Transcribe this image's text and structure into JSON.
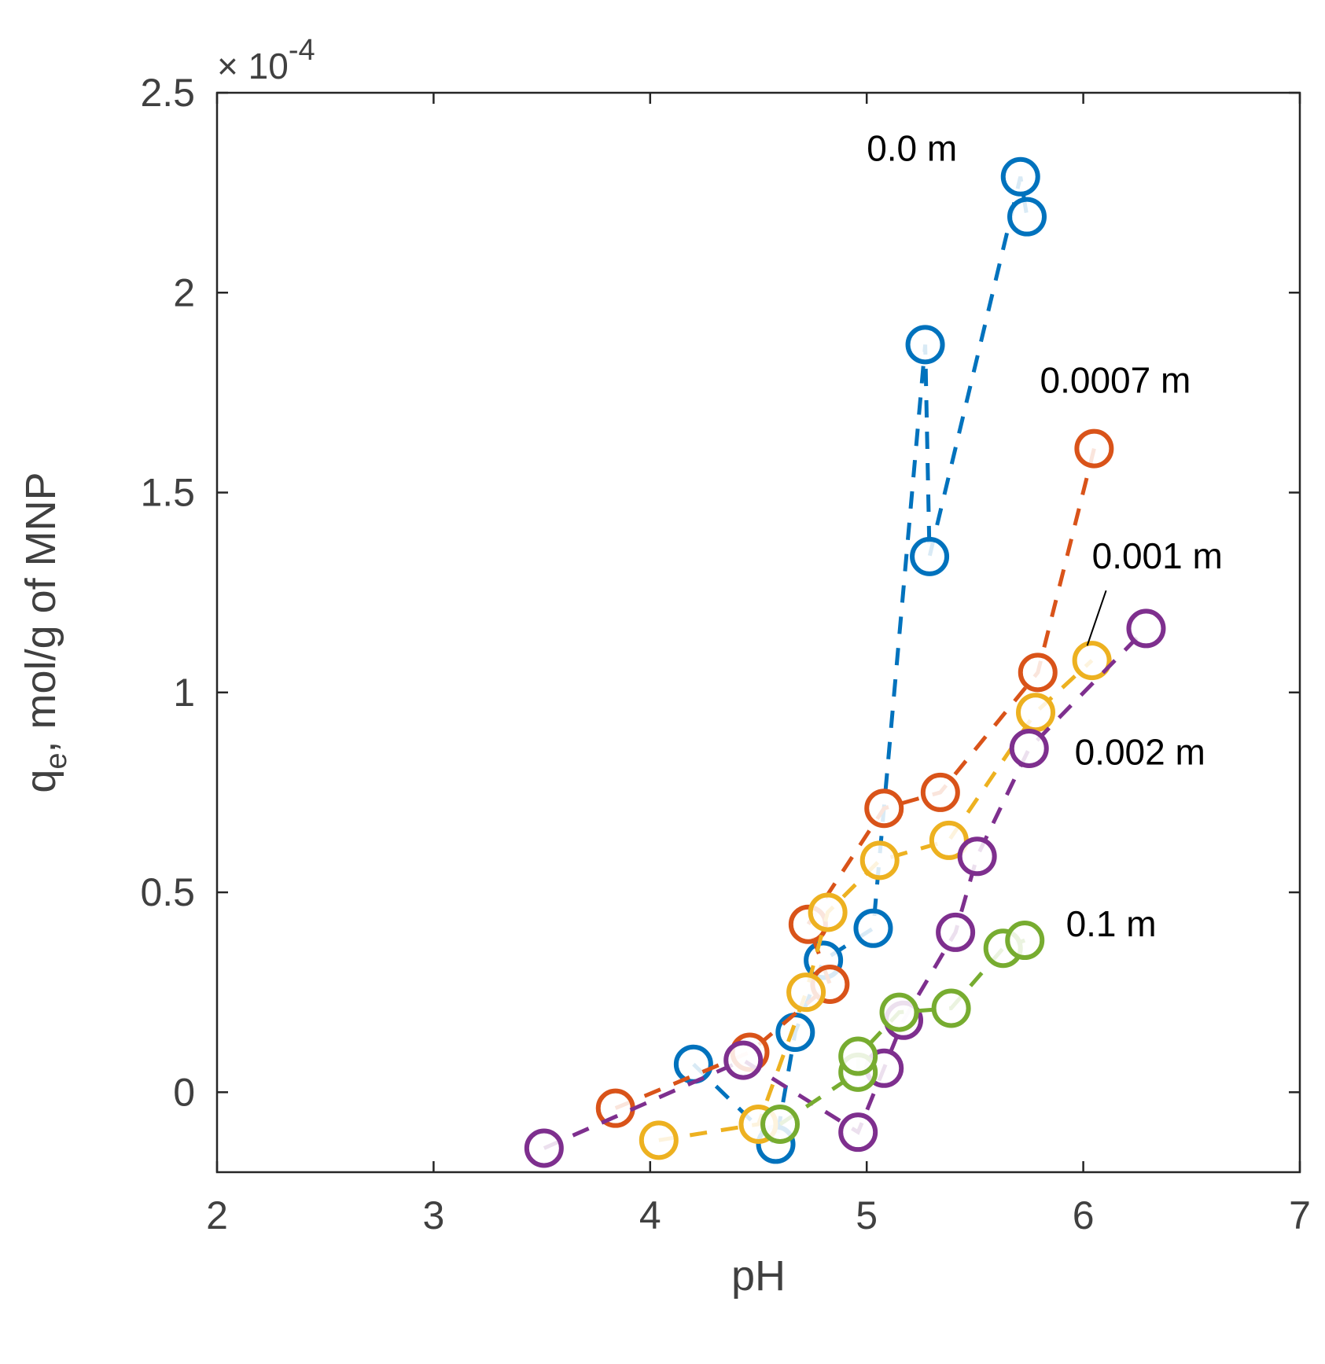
{
  "chart_data": {
    "type": "scatter",
    "title": "",
    "xlabel": "pH",
    "ylabel_main": "q",
    "ylabel_sub": "e",
    "ylabel_rest": ", mol/g of MNP",
    "y_scale_prefix": "× 10",
    "y_scale_exponent": "-4",
    "xlim": [
      2,
      7
    ],
    "ylim": [
      -0.2,
      2.5
    ],
    "x_ticks": [
      2,
      3,
      4,
      5,
      6,
      7
    ],
    "x_tick_labels": [
      "2",
      "3",
      "4",
      "5",
      "6",
      "7"
    ],
    "y_ticks": [
      0,
      0.5,
      1,
      1.5,
      2,
      2.5
    ],
    "y_tick_labels": [
      "0",
      "0.5",
      "1",
      "1.5",
      "2",
      "2.5"
    ],
    "grid": false,
    "series": [
      {
        "name": "0.0 m",
        "color": "#0072BD",
        "points": [
          [
            4.2,
            0.07
          ],
          [
            4.58,
            -0.13
          ],
          [
            4.67,
            0.15
          ],
          [
            4.8,
            0.33
          ],
          [
            5.03,
            0.41
          ],
          [
            5.27,
            1.87
          ],
          [
            5.29,
            1.34
          ],
          [
            5.71,
            2.29
          ],
          [
            5.74,
            2.19
          ]
        ],
        "line": [
          [
            4.2,
            0.07
          ],
          [
            4.58,
            -0.13
          ],
          [
            4.67,
            0.15
          ],
          [
            4.8,
            0.33
          ],
          [
            5.03,
            0.41
          ],
          [
            5.27,
            1.87
          ],
          [
            5.29,
            1.34
          ],
          [
            5.71,
            2.29
          ],
          [
            5.74,
            2.19
          ]
        ]
      },
      {
        "name": "0.0007 m",
        "color": "#D95319",
        "points": [
          [
            3.84,
            -0.04
          ],
          [
            4.46,
            0.1
          ],
          [
            4.73,
            0.42
          ],
          [
            4.83,
            0.27
          ],
          [
            5.08,
            0.71
          ],
          [
            5.34,
            0.75
          ],
          [
            5.79,
            1.05
          ],
          [
            6.05,
            1.61
          ]
        ],
        "line": [
          [
            3.84,
            -0.04
          ],
          [
            4.46,
            0.1
          ],
          [
            4.83,
            0.27
          ],
          [
            4.73,
            0.42
          ],
          [
            5.08,
            0.71
          ],
          [
            5.34,
            0.75
          ],
          [
            5.79,
            1.05
          ],
          [
            6.05,
            1.61
          ]
        ]
      },
      {
        "name": "0.001 m",
        "color": "#EDB120",
        "points": [
          [
            4.04,
            -0.12
          ],
          [
            4.5,
            -0.08
          ],
          [
            4.72,
            0.25
          ],
          [
            4.82,
            0.45
          ],
          [
            5.06,
            0.58
          ],
          [
            5.38,
            0.63
          ],
          [
            5.78,
            0.95
          ],
          [
            6.04,
            1.08
          ]
        ],
        "line": [
          [
            4.04,
            -0.12
          ],
          [
            4.5,
            -0.08
          ],
          [
            4.72,
            0.25
          ],
          [
            4.82,
            0.45
          ],
          [
            5.06,
            0.58
          ],
          [
            5.38,
            0.63
          ],
          [
            5.78,
            0.95
          ],
          [
            6.04,
            1.08
          ]
        ]
      },
      {
        "name": "0.002 m",
        "color": "#7E2F8E",
        "points": [
          [
            3.51,
            -0.14
          ],
          [
            4.43,
            0.08
          ],
          [
            4.96,
            -0.1
          ],
          [
            5.08,
            0.06
          ],
          [
            5.17,
            0.18
          ],
          [
            5.41,
            0.4
          ],
          [
            5.51,
            0.59
          ],
          [
            5.75,
            0.86
          ],
          [
            6.29,
            1.16
          ]
        ],
        "line": [
          [
            3.51,
            -0.14
          ],
          [
            4.43,
            0.08
          ],
          [
            4.96,
            -0.1
          ],
          [
            5.08,
            0.06
          ],
          [
            5.17,
            0.18
          ],
          [
            5.41,
            0.4
          ],
          [
            5.51,
            0.59
          ],
          [
            5.75,
            0.86
          ],
          [
            6.29,
            1.16
          ]
        ]
      },
      {
        "name": "0.1 m",
        "color": "#77AC30",
        "points": [
          [
            4.6,
            -0.08
          ],
          [
            4.96,
            0.05
          ],
          [
            4.96,
            0.09
          ],
          [
            5.15,
            0.2
          ],
          [
            5.39,
            0.21
          ],
          [
            5.63,
            0.36
          ],
          [
            5.73,
            0.38
          ]
        ],
        "line": [
          [
            4.6,
            -0.08
          ],
          [
            4.96,
            0.05
          ],
          [
            4.96,
            0.09
          ],
          [
            5.15,
            0.2
          ],
          [
            5.39,
            0.21
          ],
          [
            5.63,
            0.36
          ],
          [
            5.73,
            0.38
          ]
        ]
      }
    ],
    "annotations": [
      {
        "text": "0.0 m",
        "x": 5.0,
        "y": 2.33
      },
      {
        "text": "0.0007 m",
        "x": 5.8,
        "y": 1.75
      },
      {
        "text": "0.001 m",
        "x": 6.04,
        "y": 1.31
      },
      {
        "text": "0.002 m",
        "x": 5.96,
        "y": 0.82
      },
      {
        "text": "0.1 m",
        "x": 5.92,
        "y": 0.39
      }
    ]
  }
}
